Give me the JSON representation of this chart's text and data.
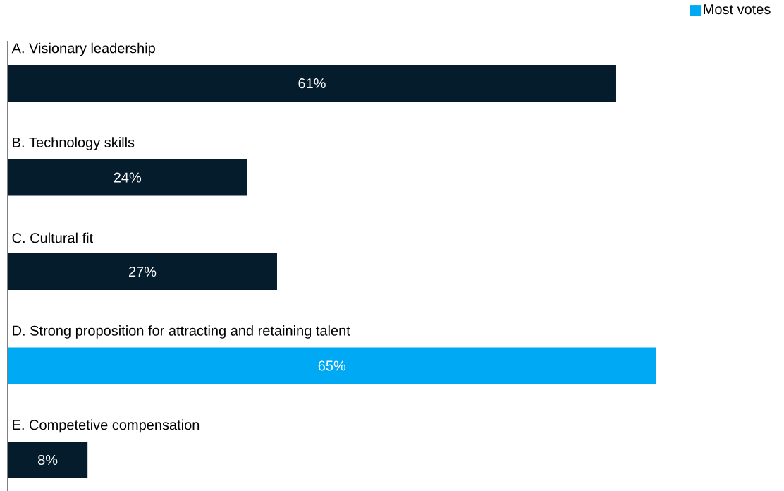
{
  "chart_data": {
    "type": "bar",
    "orientation": "horizontal",
    "categories": [
      "A. Visionary leadership",
      "B. Technology skills",
      "C. Cultural fit",
      "D. Strong proposition for attracting and retaining talent",
      "E. Competetive compensation"
    ],
    "series": [
      {
        "color": "#051c2c",
        "values": [
          61,
          24,
          27,
          null,
          8
        ],
        "value_labels": [
          "61%",
          "24%",
          "27%",
          null,
          "8%"
        ]
      },
      {
        "name": "Most votes",
        "color": "#00a9f4",
        "values": [
          null,
          null,
          null,
          65,
          null
        ],
        "value_labels": [
          null,
          null,
          null,
          "65%",
          null
        ]
      }
    ],
    "legend": "top right"
  }
}
